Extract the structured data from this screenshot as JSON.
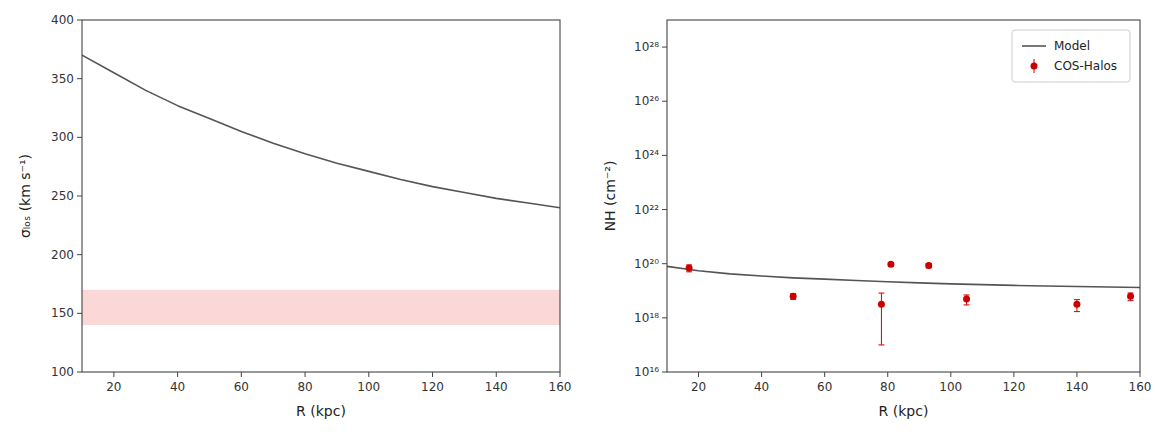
{
  "chart_data": [
    {
      "type": "line",
      "xlabel": "R (kpc)",
      "ylabel": "σₗₒₛ (km s⁻¹)",
      "x": [
        10,
        20,
        30,
        40,
        50,
        60,
        70,
        80,
        90,
        100,
        110,
        120,
        130,
        140,
        150,
        160
      ],
      "series": [
        {
          "color": "#555555",
          "values": [
            370,
            355,
            340,
            327,
            316,
            305,
            295,
            286,
            278,
            271,
            264,
            258,
            253,
            248,
            244,
            240
          ]
        }
      ],
      "bands": [
        {
          "y": [
            140,
            170
          ],
          "color": "#f5b8b8"
        }
      ],
      "xlim": [
        10,
        160
      ],
      "ylim": [
        100,
        400
      ],
      "xticks": [
        20,
        40,
        60,
        80,
        100,
        120,
        140,
        160
      ],
      "yticks": [
        100,
        150,
        200,
        250,
        300,
        350,
        400
      ],
      "grid": false
    },
    {
      "type": "line",
      "xlabel": "R (kpc)",
      "ylabel": "NH (cm⁻²)",
      "log": "y",
      "legend": "upper right",
      "series": [
        {
          "name": "Model",
          "type": "line",
          "color": "#555555",
          "x": [
            10,
            20,
            30,
            40,
            50,
            60,
            70,
            80,
            90,
            100,
            110,
            120,
            130,
            140,
            150,
            160
          ],
          "values": [
            8e+19,
            5.5e+19,
            4.2e+19,
            3.5e+19,
            3e+19,
            2.7e+19,
            2.4e+19,
            2.15e+19,
            1.95e+19,
            1.8e+19,
            1.68e+19,
            1.58e+19,
            1.5e+19,
            1.43e+19,
            1.37e+19,
            1.32e+19
          ]
        },
        {
          "name": "COS-Halos",
          "type": "scatter",
          "marker": "circle",
          "color": "#cc0000",
          "x": [
            17,
            50,
            78,
            81,
            93,
            105,
            140,
            157
          ],
          "values": [
            7e+19,
            6.3e+18,
            3.2e+18,
            9.5e+19,
            8.5e+19,
            5e+18,
            3.2e+18,
            6.3e+18
          ],
          "error_low": [
            2e+19,
            1.5e+18,
            3.1e+18,
            1.5e+19,
            1.5e+19,
            2e+18,
            1.5e+18,
            2e+18
          ],
          "error_high": [
            2e+19,
            1.5e+18,
            5e+18,
            1.5e+19,
            1.5e+19,
            2e+18,
            1.5e+18,
            2e+18
          ]
        }
      ],
      "xlim": [
        10,
        160
      ],
      "ylim": [
        1e+16,
        1e+29
      ],
      "xticks": [
        20,
        40,
        60,
        80,
        100,
        120,
        140,
        160
      ],
      "yticks": [
        {
          "value": 1e+16,
          "label": "10¹⁶"
        },
        {
          "value": 1e+18,
          "label": "10¹⁸"
        },
        {
          "value": 1e+20,
          "label": "10²⁰"
        },
        {
          "value": 1e+22,
          "label": "10²²"
        },
        {
          "value": 1e+24,
          "label": "10²⁴"
        },
        {
          "value": 1e+26,
          "label": "10²⁶"
        },
        {
          "value": 1e+28,
          "label": "10²⁸"
        }
      ],
      "grid": false
    }
  ]
}
